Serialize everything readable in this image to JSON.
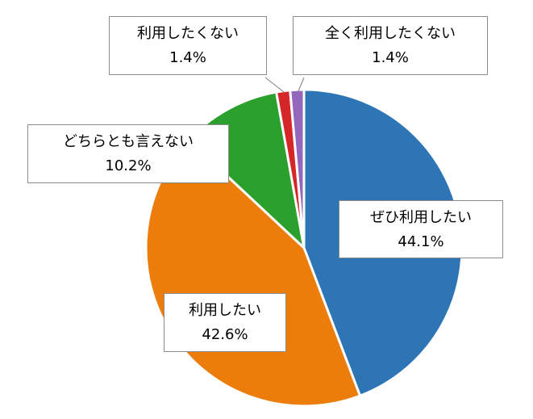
{
  "chart_data": {
    "type": "pie",
    "title": "",
    "start_angle_deg": 0,
    "direction": "clockwise",
    "slices": [
      {
        "label": "ぜひ利用したい",
        "value": 44.1,
        "value_text": "44.1%",
        "color": "#2e75b6"
      },
      {
        "label": "利用したい",
        "value": 42.6,
        "value_text": "42.6%",
        "color": "#ed7d0a"
      },
      {
        "label": "どちらとも言えない",
        "value": 10.2,
        "value_text": "10.2%",
        "color": "#2ca02c"
      },
      {
        "label": "利用したくない",
        "value": 1.4,
        "value_text": "1.4%",
        "color": "#d62728"
      },
      {
        "label": "全く利用したくない",
        "value": 1.4,
        "value_text": "1.4%",
        "color": "#9467bd"
      }
    ]
  }
}
